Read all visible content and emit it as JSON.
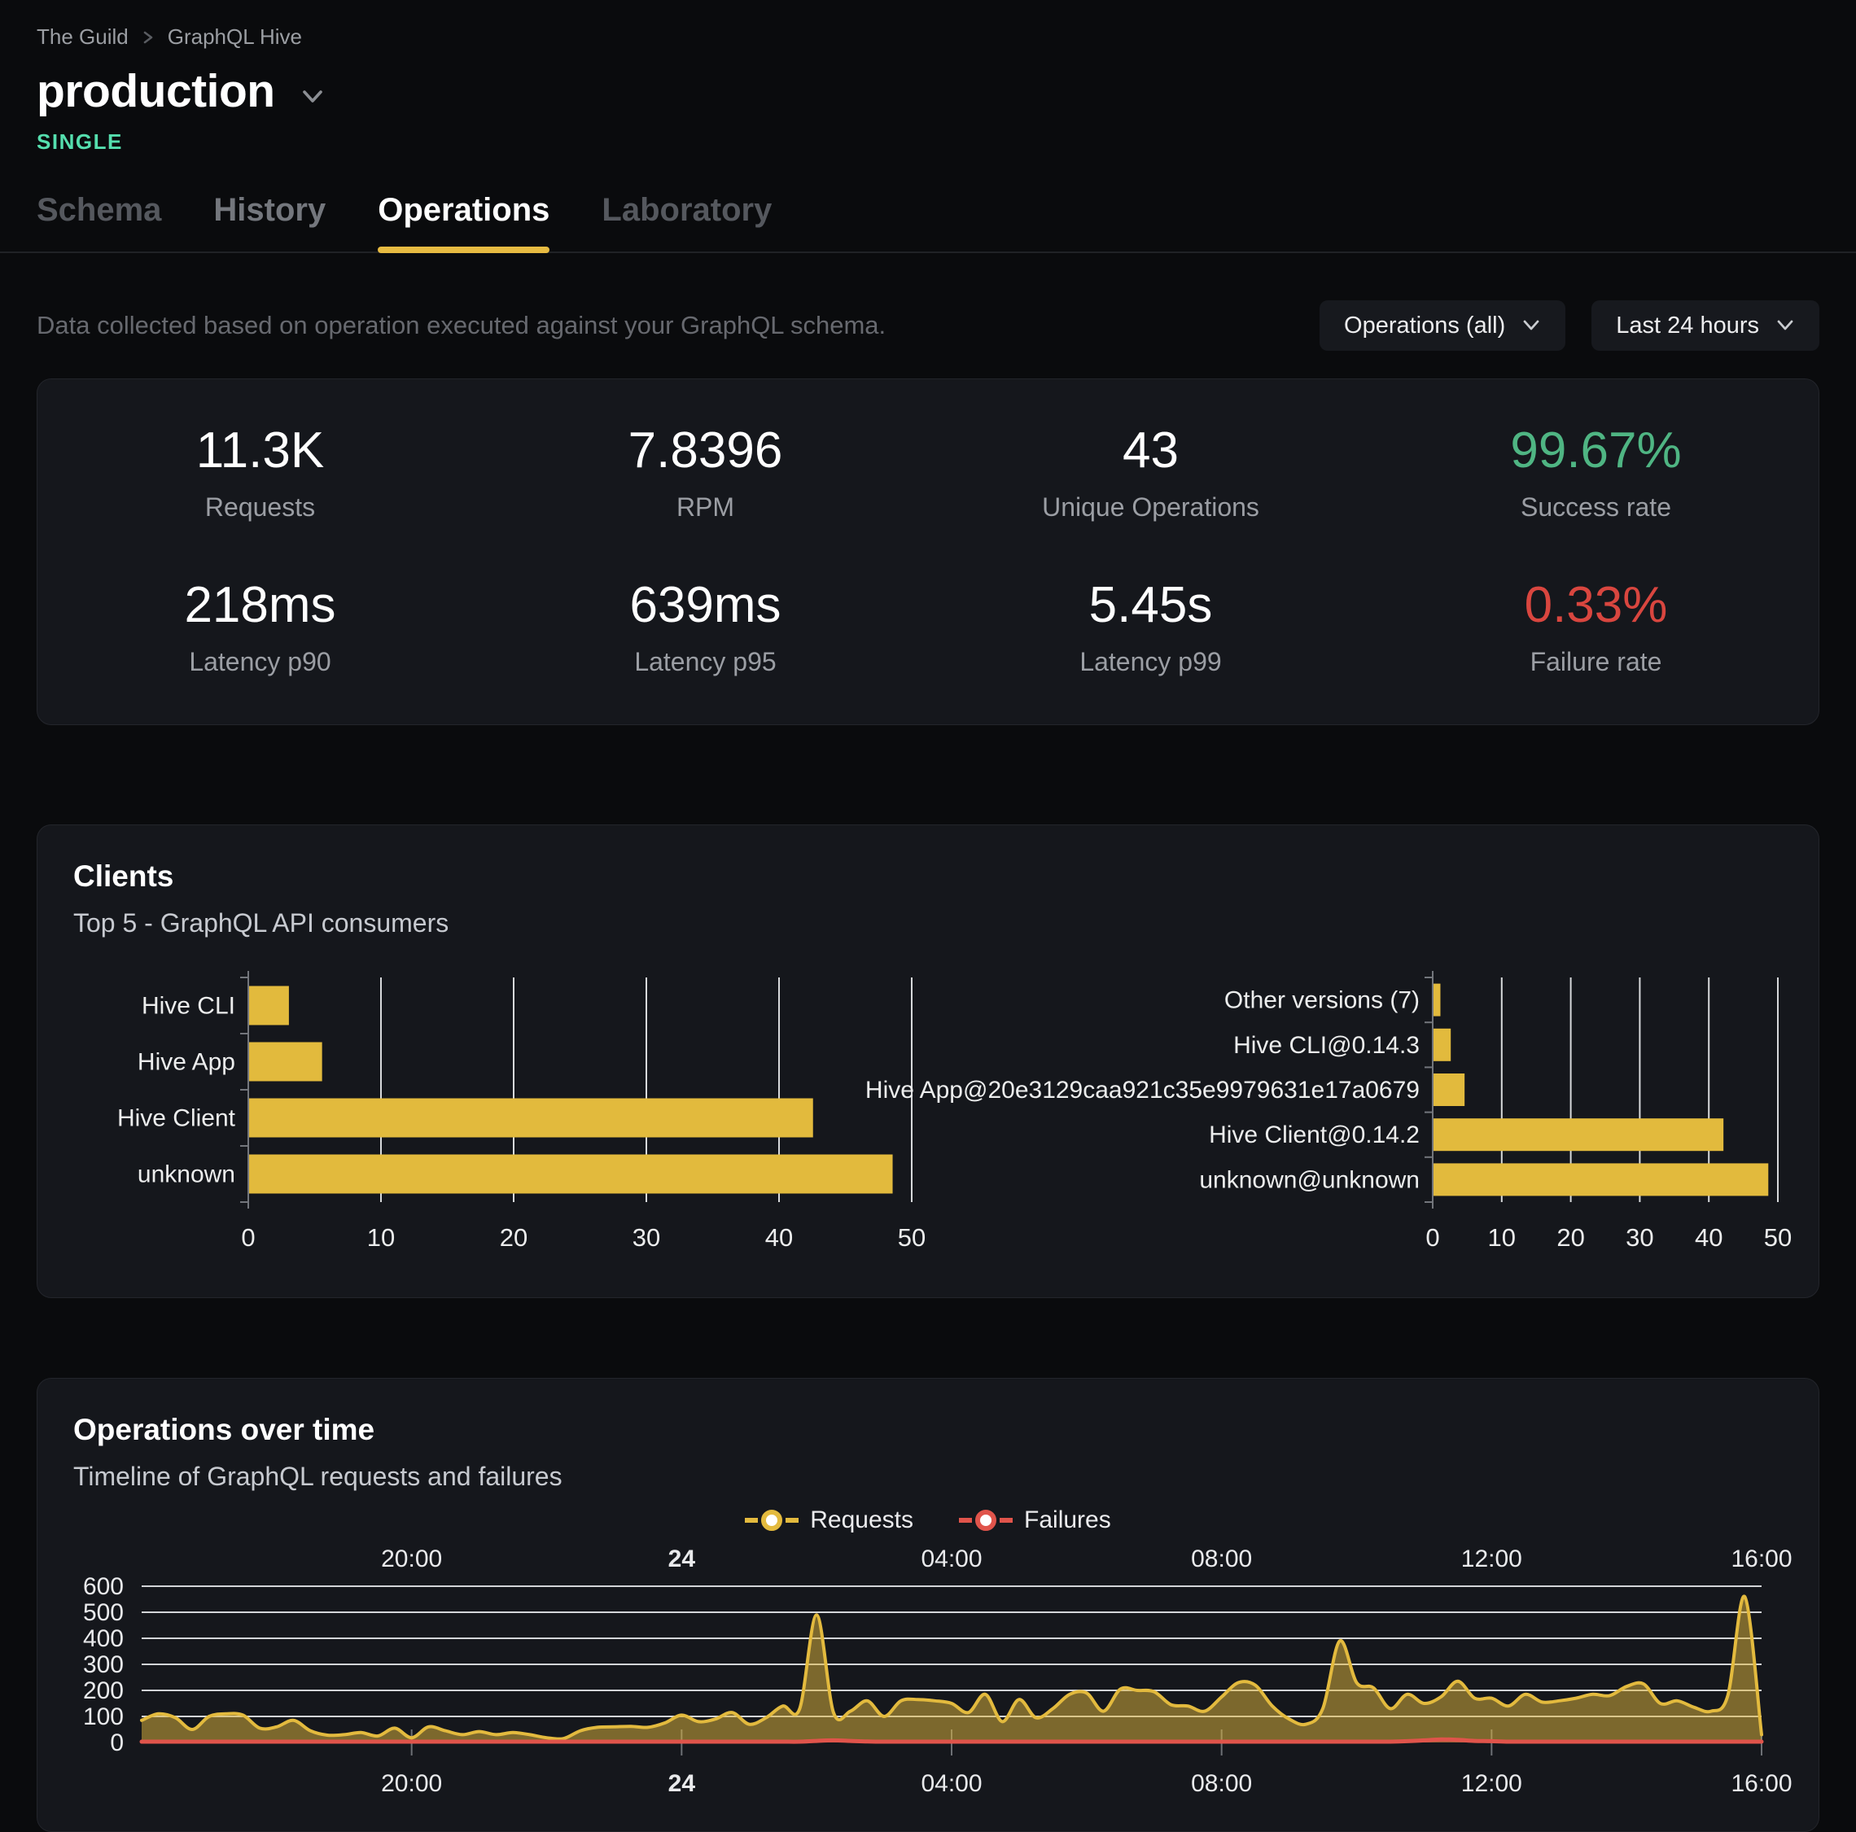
{
  "header": {
    "breadcrumb": [
      "The Guild",
      "GraphQL Hive"
    ],
    "title": "production",
    "badge": "SINGLE"
  },
  "tabs": [
    {
      "label": "Schema",
      "state": "inactive"
    },
    {
      "label": "History",
      "state": "inactive-light"
    },
    {
      "label": "Operations",
      "state": "active"
    },
    {
      "label": "Laboratory",
      "state": "inactive"
    }
  ],
  "controls": {
    "description": "Data collected based on operation executed against your GraphQL schema.",
    "operations_filter": "Operations (all)",
    "time_range": "Last 24 hours"
  },
  "stats": [
    {
      "value": "11.3K",
      "label": "Requests"
    },
    {
      "value": "7.8396",
      "label": "RPM"
    },
    {
      "value": "43",
      "label": "Unique Operations"
    },
    {
      "value": "99.67%",
      "label": "Success rate",
      "accent": "success"
    },
    {
      "value": "218ms",
      "label": "Latency p90"
    },
    {
      "value": "639ms",
      "label": "Latency p95"
    },
    {
      "value": "5.45s",
      "label": "Latency p99"
    },
    {
      "value": "0.33%",
      "label": "Failure rate",
      "accent": "failure"
    }
  ],
  "clients": {
    "title": "Clients",
    "subtitle": "Top 5 - GraphQL API consumers"
  },
  "operations_over_time": {
    "title": "Operations over time",
    "subtitle": "Timeline of GraphQL requests and failures"
  },
  "colors": {
    "accent_yellow": "#e2ba3d",
    "badge_green": "#55dfae",
    "success_green": "#4fb583",
    "failure_red": "#d9463f",
    "requests_series": "#e3ba3e",
    "failures_series": "#e0544b"
  },
  "chart_data": [
    {
      "type": "bar",
      "name": "clients-by-name",
      "orientation": "horizontal",
      "categories": [
        "Hive CLI",
        "Hive App",
        "Hive Client",
        "unknown"
      ],
      "values": [
        3,
        5.5,
        42.5,
        48.5
      ],
      "xlim": [
        0,
        50
      ],
      "x_ticks": [
        0,
        10,
        20,
        30,
        40,
        50
      ],
      "bar_color": "#e2ba3d",
      "grid": "vertical"
    },
    {
      "type": "bar",
      "name": "clients-by-version",
      "orientation": "horizontal",
      "categories": [
        "Other versions (7)",
        "Hive CLI@0.14.3",
        "Hive App@20e3129caa921c35e9979631e17a0679",
        "Hive Client@0.14.2",
        "unknown@unknown"
      ],
      "values": [
        1,
        2.5,
        4.5,
        42,
        48.5
      ],
      "xlim": [
        0,
        50
      ],
      "x_ticks": [
        0,
        10,
        20,
        30,
        40,
        50
      ],
      "bar_color": "#e2ba3d",
      "grid": "vertical"
    },
    {
      "type": "area",
      "name": "operations-timeline",
      "x_window": "last 24 hours, 16:00 to 16:00",
      "interval_minutes": 15,
      "x_tick_labels": [
        {
          "label": "20:00",
          "h": 4
        },
        {
          "label": "24",
          "h": 8,
          "bold": true
        },
        {
          "label": "04:00",
          "h": 12
        },
        {
          "label": "08:00",
          "h": 16
        },
        {
          "label": "12:00",
          "h": 20
        },
        {
          "label": "16:00",
          "h": 24
        }
      ],
      "ylim": [
        0,
        600
      ],
      "y_ticks": [
        0,
        100,
        200,
        300,
        400,
        500,
        600
      ],
      "grid": "horizontal",
      "legend_position": "top-center",
      "series": [
        {
          "name": "Requests",
          "color": "#e3ba3e",
          "values": [
            85,
            110,
            95,
            50,
            100,
            110,
            105,
            55,
            60,
            85,
            45,
            28,
            30,
            38,
            25,
            55,
            18,
            60,
            45,
            30,
            42,
            30,
            38,
            30,
            18,
            15,
            45,
            58,
            60,
            62,
            58,
            75,
            105,
            80,
            90,
            115,
            70,
            95,
            140,
            130,
            490,
            115,
            120,
            160,
            100,
            160,
            165,
            160,
            150,
            115,
            185,
            80,
            165,
            95,
            130,
            185,
            190,
            120,
            205,
            200,
            195,
            145,
            140,
            120,
            175,
            230,
            220,
            140,
            90,
            70,
            130,
            390,
            230,
            210,
            130,
            185,
            150,
            175,
            235,
            170,
            170,
            140,
            185,
            155,
            160,
            170,
            185,
            180,
            215,
            225,
            150,
            160,
            135,
            120,
            180,
            560,
            30
          ]
        },
        {
          "name": "Failures",
          "color": "#e0544b",
          "values": [
            3,
            3,
            3,
            3,
            3,
            3,
            3,
            3,
            3,
            3,
            3,
            3,
            3,
            3,
            3,
            3,
            3,
            3,
            3,
            3,
            3,
            3,
            3,
            3,
            3,
            3,
            3,
            3,
            3,
            3,
            3,
            3,
            3,
            3,
            3,
            3,
            3,
            3,
            3,
            3,
            6,
            8,
            6,
            4,
            3,
            3,
            3,
            3,
            3,
            3,
            3,
            3,
            3,
            3,
            3,
            3,
            3,
            3,
            3,
            3,
            3,
            3,
            3,
            3,
            3,
            3,
            3,
            3,
            3,
            3,
            3,
            3,
            3,
            3,
            3,
            5,
            8,
            12,
            10,
            6,
            5,
            3,
            3,
            3,
            3,
            3,
            3,
            3,
            3,
            3,
            3,
            3,
            3,
            3,
            3,
            3,
            3
          ]
        }
      ]
    }
  ]
}
